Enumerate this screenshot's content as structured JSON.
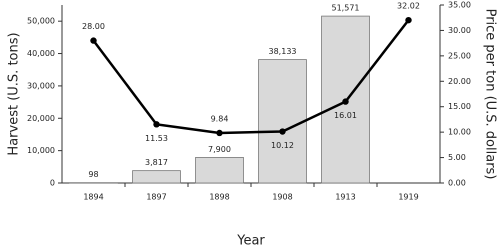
{
  "chart_data": {
    "type": "bar",
    "x_label": "Year",
    "y_label": "Harvest (U.S. tons)",
    "y2_label": "Price per ton (U.S. dollars)",
    "categories": [
      "1894",
      "1897",
      "1898",
      "1908",
      "1913",
      "1919"
    ],
    "series": [
      {
        "name": "Harvest",
        "type": "bar",
        "color": "#d9d9d9",
        "values": [
          98,
          3817,
          7900,
          38133,
          51571,
          null
        ],
        "value_labels": [
          "98",
          "3,817",
          "7,900",
          "38,133",
          "51,571",
          null
        ]
      },
      {
        "name": "Price per ton",
        "type": "line",
        "axis": "y2",
        "color": "#000000",
        "values": [
          28.0,
          11.53,
          9.84,
          10.12,
          16.01,
          32.02
        ],
        "value_labels": [
          "28.00",
          "11.53",
          "9.84",
          "10.12",
          "16.01",
          "32.02"
        ]
      }
    ],
    "ylim": [
      0,
      55000
    ],
    "yticks": [
      0,
      {
        "value": 10000,
        "label": "10,000"
      },
      {
        "value": 20000,
        "label": "20,000"
      },
      {
        "value": 30000,
        "label": "30,000"
      },
      {
        "value": 40000,
        "label": "40,000"
      },
      {
        "value": 50000,
        "label": "50,000"
      }
    ],
    "y2lim": [
      0,
      35
    ],
    "y2ticks": [
      {
        "value": 0,
        "label": "0.00"
      },
      {
        "value": 5,
        "label": "5.00"
      },
      {
        "value": 10,
        "label": "10.00"
      },
      {
        "value": 15,
        "label": "15.00"
      },
      {
        "value": 20,
        "label": "20.00"
      },
      {
        "value": 25,
        "label": "25.00"
      },
      {
        "value": 30,
        "label": "30.00"
      },
      {
        "value": 35,
        "label": "35.00"
      }
    ],
    "grid": false
  }
}
